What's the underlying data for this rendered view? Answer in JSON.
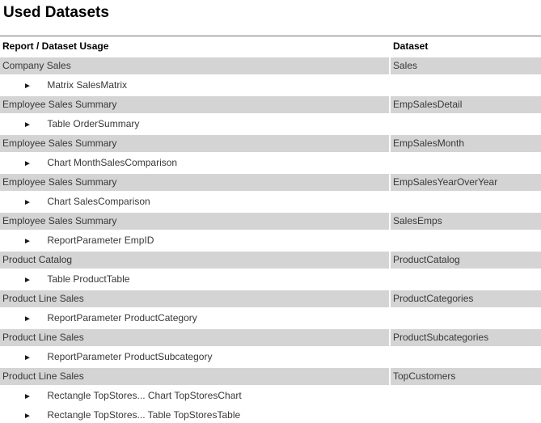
{
  "page": {
    "title": "Used Datasets"
  },
  "table": {
    "headers": {
      "usage": "Report / Dataset Usage",
      "dataset": "Dataset"
    },
    "item_marker": "►",
    "rows": [
      {
        "type": "report",
        "usage": "Company Sales",
        "dataset": "Sales"
      },
      {
        "type": "item",
        "usage": "Matrix SalesMatrix",
        "dataset": ""
      },
      {
        "type": "report",
        "usage": "Employee Sales Summary",
        "dataset": "EmpSalesDetail"
      },
      {
        "type": "item",
        "usage": "Table OrderSummary",
        "dataset": ""
      },
      {
        "type": "report",
        "usage": "Employee Sales Summary",
        "dataset": "EmpSalesMonth"
      },
      {
        "type": "item",
        "usage": "Chart MonthSalesComparison",
        "dataset": ""
      },
      {
        "type": "report",
        "usage": "Employee Sales Summary",
        "dataset": "EmpSalesYearOverYear"
      },
      {
        "type": "item",
        "usage": "Chart SalesComparison",
        "dataset": ""
      },
      {
        "type": "report",
        "usage": "Employee Sales Summary",
        "dataset": "SalesEmps"
      },
      {
        "type": "item",
        "usage": "ReportParameter EmpID",
        "dataset": ""
      },
      {
        "type": "report",
        "usage": "Product Catalog",
        "dataset": "ProductCatalog"
      },
      {
        "type": "item",
        "usage": "Table ProductTable",
        "dataset": ""
      },
      {
        "type": "report",
        "usage": "Product Line Sales",
        "dataset": "ProductCategories"
      },
      {
        "type": "item",
        "usage": "ReportParameter ProductCategory",
        "dataset": ""
      },
      {
        "type": "report",
        "usage": "Product Line Sales",
        "dataset": "ProductSubcategories"
      },
      {
        "type": "item",
        "usage": "ReportParameter ProductSubcategory",
        "dataset": ""
      },
      {
        "type": "report",
        "usage": "Product Line Sales",
        "dataset": "TopCustomers"
      },
      {
        "type": "item",
        "usage": "Rectangle TopStores... Chart TopStoresChart",
        "dataset": ""
      },
      {
        "type": "item",
        "usage": "Rectangle TopStores... Table TopStoresTable",
        "dataset": ""
      }
    ]
  },
  "colors": {
    "report_row_band": "#d4d4d4",
    "header_rule": "#6e6e6e",
    "body_text": "#383838",
    "heading_text": "#000000"
  }
}
